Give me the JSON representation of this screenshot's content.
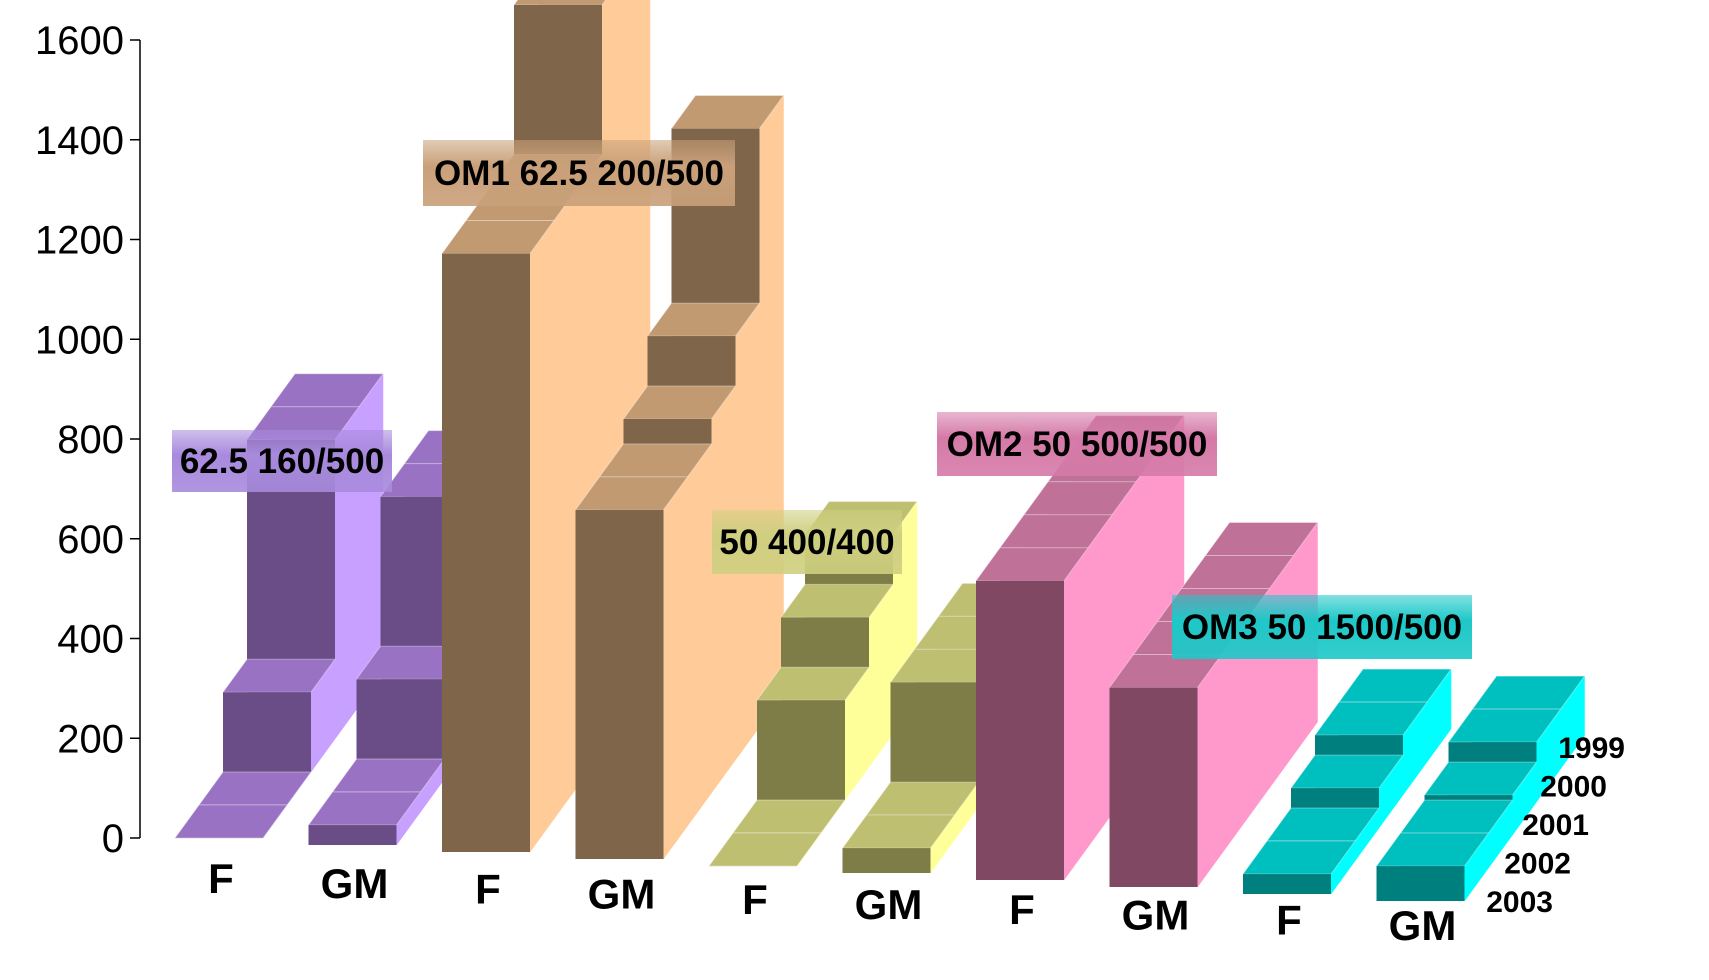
{
  "chart_data": {
    "type": "bar",
    "title": "",
    "xlabel": "",
    "ylabel": "",
    "ylim": [
      0,
      1600
    ],
    "yticks": [
      0,
      200,
      400,
      600,
      800,
      1000,
      1200,
      1400,
      1600
    ],
    "depth_series": [
      "1999",
      "2000",
      "2001",
      "2002",
      "2003"
    ],
    "groups": [
      {
        "label": "62.5 160/500",
        "colors": {
          "front": "#6a4d86",
          "top": "#9a72c4",
          "side": "#c8a0ff",
          "label_bg": "#a88add"
        },
        "bars": [
          {
            "category": "F",
            "values": [
              600,
              600,
              160,
              0,
              0
            ]
          },
          {
            "category": "GM",
            "values": [
              500,
              500,
              200,
              40,
              40
            ]
          }
        ]
      },
      {
        "label": "OM1 62.5 200/500",
        "colors": {
          "front": "#7f654a",
          "top": "#c29a72",
          "side": "#ffcc99",
          "label_bg": "#c9a079"
        },
        "bars": [
          {
            "category": "F",
            "values": [
              1700,
              1500,
              1200,
              1200,
              1200
            ]
          },
          {
            "category": "GM",
            "values": [
              1200,
              850,
              750,
              700,
              700
            ]
          }
        ]
      },
      {
        "label": "50 400/400",
        "colors": {
          "front": "#7e7d48",
          "top": "#bfbf72",
          "side": "#ffff99",
          "label_bg": "#cfcf80"
        },
        "bars": [
          {
            "category": "F",
            "values": [
              400,
              300,
              200,
              0,
              0
            ]
          },
          {
            "category": "GM",
            "values": [
              250,
              250,
              250,
              50,
              50
            ]
          }
        ]
      },
      {
        "label": "OM2 50 500/500",
        "colors": {
          "front": "#804862",
          "top": "#bf7198",
          "side": "#ff99cc",
          "label_bg": "#d57aa8"
        },
        "bars": [
          {
            "category": "F",
            "values": [
              600,
              600,
              600,
              600,
              600
            ]
          },
          {
            "category": "GM",
            "values": [
              400,
              400,
              400,
              400,
              400
            ]
          }
        ]
      },
      {
        "label": "OM3 50 1500/500",
        "colors": {
          "front": "#007f7f",
          "top": "#00bfbf",
          "side": "#00ffff",
          "label_bg": "#1ec8c8"
        },
        "bars": [
          {
            "category": "F",
            "values": [
              120,
              120,
              80,
              40,
              40
            ]
          },
          {
            "category": "GM",
            "values": [
              120,
              120,
              80,
              70,
              70
            ]
          }
        ]
      }
    ]
  }
}
